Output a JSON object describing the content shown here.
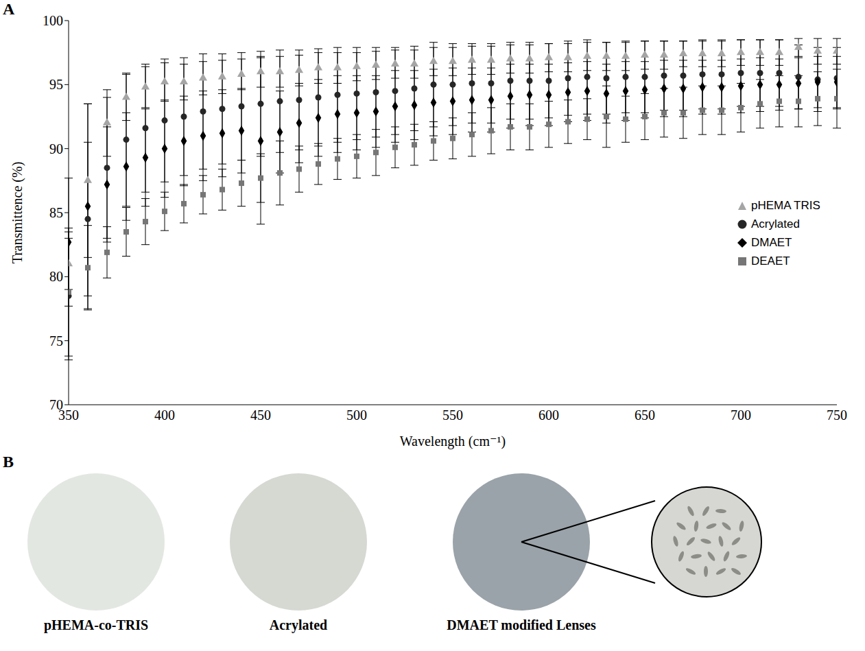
{
  "chart_data": {
    "type": "scatter",
    "panel": "A",
    "x_label": "Wavelength (cm⁻¹)",
    "y_label": "Transmittence (%)",
    "x": [
      350,
      360,
      370,
      380,
      390,
      400,
      410,
      420,
      430,
      440,
      450,
      460,
      470,
      480,
      490,
      500,
      510,
      520,
      530,
      540,
      550,
      560,
      570,
      580,
      590,
      600,
      610,
      620,
      630,
      640,
      650,
      660,
      670,
      680,
      690,
      700,
      710,
      720,
      730,
      740,
      750
    ],
    "xlim": [
      350,
      750
    ],
    "xticks": [
      350,
      400,
      450,
      500,
      550,
      600,
      650,
      700,
      750
    ],
    "ylim": [
      70,
      100
    ],
    "yticks": [
      70,
      75,
      80,
      85,
      90,
      95,
      100
    ],
    "grid": false,
    "legend": "right",
    "series": [
      {
        "name": "pHEMA TRIS",
        "color": "#a5a5a5",
        "marker": "triangle",
        "values": [
          81,
          87.5,
          92,
          94,
          94.8,
          95.2,
          95.2,
          95.5,
          95.6,
          95.8,
          96,
          96,
          96.1,
          96.3,
          96.3,
          96.4,
          96.5,
          96.6,
          96.6,
          96.8,
          96.8,
          96.9,
          96.9,
          97,
          97,
          97.1,
          97.1,
          97.2,
          97.2,
          97.2,
          97.3,
          97.3,
          97.4,
          97.4,
          97.4,
          97.5,
          97.5,
          97.5,
          97.9,
          97.6,
          97.6
        ],
        "errors": [
          2,
          6,
          2.6,
          1.8,
          1.6,
          1.5,
          1.4,
          1.3,
          1.3,
          1.2,
          1.2,
          1.2,
          1.2,
          1.2,
          1.2,
          1.1,
          1.1,
          1.1,
          1.1,
          1.1,
          1.1,
          1.1,
          1.1,
          1.1,
          1.1,
          1.1,
          1.1,
          1.1,
          1.1,
          1.1,
          1.1,
          1.1,
          1,
          1,
          1,
          1,
          1,
          1,
          0.7,
          1,
          1
        ]
      },
      {
        "name": "Acrylated",
        "color": "#262626",
        "marker": "circle",
        "values": [
          78.5,
          84.5,
          88.5,
          90.7,
          91.6,
          92.2,
          92.5,
          92.9,
          93.1,
          93.3,
          93.5,
          93.7,
          93.8,
          94,
          94.2,
          94.3,
          94.4,
          94.5,
          94.7,
          95,
          95,
          95.1,
          95.1,
          95.3,
          95.3,
          95.3,
          95.5,
          95.6,
          95.5,
          95.6,
          95.6,
          95.7,
          95.7,
          95.8,
          95.8,
          95.9,
          95.9,
          95.9,
          95.6,
          95.4,
          95.5
        ],
        "errors": [
          5,
          6,
          5.5,
          5.2,
          5,
          4.8,
          4.6,
          4.5,
          4.3,
          4.2,
          4.1,
          4,
          3.9,
          3.8,
          3.7,
          3.6,
          3.5,
          3.4,
          3.3,
          3.3,
          3.2,
          3.1,
          3.1,
          3,
          3,
          2.9,
          2.9,
          2.9,
          2.8,
          2.8,
          2.8,
          2.7,
          2.7,
          2.7,
          2.7,
          2.6,
          2.6,
          2.6,
          2.5,
          2.5,
          2.4
        ]
      },
      {
        "name": "DMAET",
        "color": "#000000",
        "marker": "diamond",
        "values": [
          82.7,
          85.5,
          87.2,
          88.6,
          89.3,
          90,
          90.6,
          91,
          91.2,
          91.4,
          90.6,
          91.3,
          92,
          92.4,
          92.7,
          92.8,
          92.9,
          93.3,
          93.4,
          93.6,
          93.7,
          93.8,
          93.8,
          94.1,
          94.2,
          94.2,
          94.4,
          94.5,
          94.3,
          94.5,
          94.6,
          94.7,
          94.7,
          94.8,
          94.8,
          94.9,
          95,
          95,
          95.1,
          95.2,
          95.2
        ],
        "errors": [
          5,
          8,
          4.5,
          4.2,
          3.8,
          3.8,
          3.5,
          3.5,
          3.4,
          3.3,
          6.5,
          3.2,
          3.1,
          3,
          3,
          2.9,
          2.8,
          2.8,
          2.7,
          2.6,
          2.6,
          2.5,
          2.5,
          2.5,
          2.4,
          2.4,
          2.3,
          2.3,
          2.3,
          2.3,
          2.2,
          2.2,
          2.2,
          2.1,
          2.1,
          2.1,
          2.1,
          2,
          2,
          2,
          2
        ]
      },
      {
        "name": "DEAET",
        "color": "#767676",
        "marker": "square",
        "values": [
          78.8,
          80.7,
          81.9,
          83.5,
          84.3,
          85.1,
          85.7,
          86.4,
          86.8,
          87.3,
          87.7,
          88.1,
          88.4,
          88.8,
          89.2,
          89.4,
          89.7,
          90.1,
          90.3,
          90.6,
          90.8,
          91.1,
          91.4,
          91.7,
          91.7,
          91.9,
          92.1,
          92.3,
          92.5,
          92.3,
          92.5,
          92.8,
          92.8,
          93,
          93,
          93.2,
          93.5,
          93.7,
          93.7,
          93.9,
          93.9
        ],
        "errors": [
          5,
          3.3,
          2,
          1.9,
          1.8,
          1.5,
          1.5,
          1.5,
          1.6,
          1.8,
          1.9,
          2.5,
          1.8,
          1.6,
          1.6,
          1.7,
          1.8,
          1.6,
          1.6,
          1.5,
          1.6,
          1.7,
          1.8,
          1.8,
          1.8,
          1.8,
          1.7,
          1.6,
          2.4,
          1.8,
          1.8,
          1.9,
          2,
          1.9,
          1.9,
          1.9,
          1.9,
          2,
          2,
          2.1,
          2.3
        ]
      }
    ]
  },
  "panel_b": {
    "panel": "B",
    "images": [
      "pHEMA-co-TRIS",
      "Acrylated",
      "DMAET modified Lenses"
    ]
  }
}
